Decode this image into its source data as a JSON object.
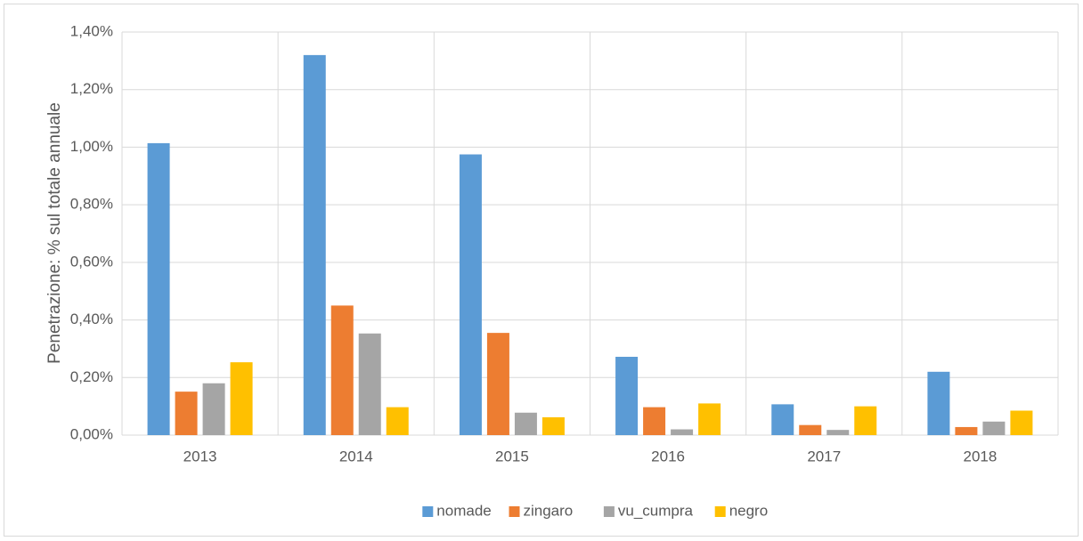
{
  "chart_data": {
    "type": "bar",
    "y_label": "Penetrazione: % sul totale annuale",
    "categories": [
      "2013",
      "2014",
      "2015",
      "2016",
      "2017",
      "2018"
    ],
    "series": [
      {
        "name": "nomade",
        "color": "#5b9bd5",
        "values": [
          1.014,
          1.32,
          0.975,
          0.272,
          0.107,
          0.22
        ]
      },
      {
        "name": "zingaro",
        "color": "#ed7d31",
        "values": [
          0.151,
          0.45,
          0.355,
          0.097,
          0.035,
          0.028
        ]
      },
      {
        "name": "vu_cumpra",
        "color": "#a5a5a5",
        "values": [
          0.18,
          0.353,
          0.078,
          0.02,
          0.018,
          0.047
        ]
      },
      {
        "name": "negro",
        "color": "#ffc000",
        "values": [
          0.253,
          0.097,
          0.062,
          0.11,
          0.1,
          0.085
        ]
      }
    ],
    "ylim": [
      0,
      1.4
    ],
    "yticks": [
      {
        "value": 0,
        "label": "0,00%"
      },
      {
        "value": 0.2,
        "label": "0,20%"
      },
      {
        "value": 0.4,
        "label": "0,40%"
      },
      {
        "value": 0.6,
        "label": "0,60%"
      },
      {
        "value": 0.8,
        "label": "0,80%"
      },
      {
        "value": 1.0,
        "label": "1,00%"
      },
      {
        "value": 1.2,
        "label": "1,20%"
      },
      {
        "value": 1.4,
        "label": "1,40%"
      }
    ],
    "grid": true,
    "legend": "bottom"
  }
}
